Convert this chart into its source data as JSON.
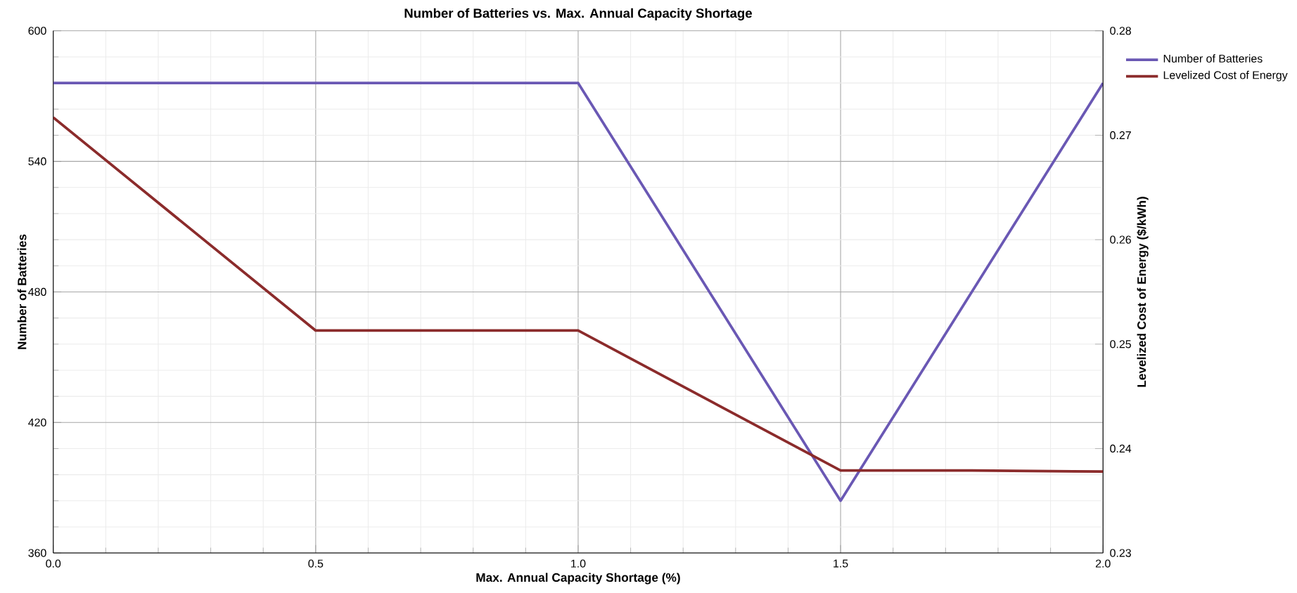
{
  "chart_data": {
    "type": "line",
    "title": "Number of Batteries vs. Max. Annual Capacity Shortage",
    "xlabel": "Max. Annual Capacity Shortage (%)",
    "ylabel": "Number of Batteries",
    "y2label": "Levelized Cost of Energy ($/kWh)",
    "x": [
      0,
      0.5,
      1.0,
      1.5,
      2.0
    ],
    "series": [
      {
        "name": "Number of Batteries",
        "color": "#6a58b4",
        "values": [
          576,
          576,
          576,
          384,
          576
        ]
      },
      {
        "name": "Levelized Cost of Energy",
        "color": "#8b2b2b",
        "axis": "y2",
        "x": [
          0,
          0.5,
          1.0,
          1.5,
          1.75,
          2.0
        ],
        "values": [
          0.2717,
          0.2513,
          0.2513,
          0.2379,
          0.2379,
          0.2378
        ]
      }
    ],
    "xlim": [
      0,
      2
    ],
    "xticks": [
      {
        "value": 0,
        "label": "0.0"
      },
      0.5,
      {
        "value": 1,
        "label": "1.0"
      },
      1.5,
      {
        "value": 2,
        "label": "2.0"
      }
    ],
    "ylim": [
      360,
      600
    ],
    "yticks": [
      360,
      420,
      480,
      540,
      600
    ],
    "y2lim": [
      0.23,
      0.28
    ],
    "y2ticks": [
      0.23,
      0.24,
      0.25,
      0.26,
      0.27,
      0.28
    ],
    "grid": true,
    "legend": "top right",
    "marker": "none",
    "line_style": "solid"
  }
}
